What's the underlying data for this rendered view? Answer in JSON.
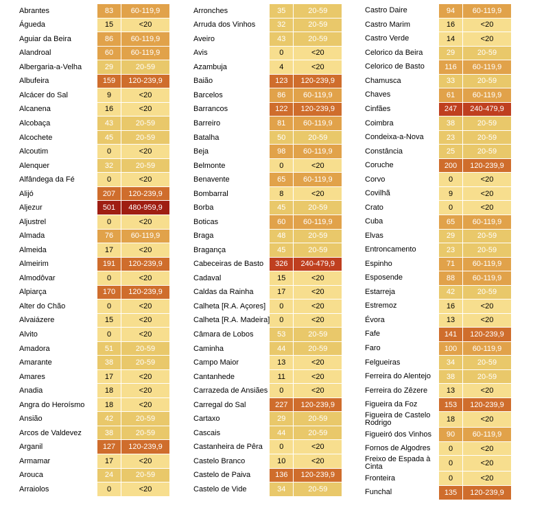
{
  "colors": {
    "lt20": "#f7de8e",
    "20_59": "#e9c86a",
    "60_119": "#e1a24a",
    "120_239": "#cf6d2c",
    "240_479": "#bf3f1f",
    "480_959": "#9f1e12"
  },
  "columns": [
    [
      {
        "name": "Abrantes",
        "value": "83",
        "class": "60-119,9"
      },
      {
        "name": "Águeda",
        "value": "15",
        "class": "<20"
      },
      {
        "name": "Aguiar da Beira",
        "value": "86",
        "class": "60-119,9"
      },
      {
        "name": "Alandroal",
        "value": "60",
        "class": "60-119,9"
      },
      {
        "name": "Albergaria-a-Velha",
        "value": "29",
        "class": "20-59"
      },
      {
        "name": "Albufeira",
        "value": "159",
        "class": "120-239,9"
      },
      {
        "name": "Alcácer do Sal",
        "value": "9",
        "class": "<20"
      },
      {
        "name": "Alcanena",
        "value": "16",
        "class": "<20"
      },
      {
        "name": "Alcobaça",
        "value": "43",
        "class": "20-59"
      },
      {
        "name": "Alcochete",
        "value": "45",
        "class": "20-59"
      },
      {
        "name": "Alcoutim",
        "value": "0",
        "class": "<20"
      },
      {
        "name": "Alenquer",
        "value": "32",
        "class": "20-59"
      },
      {
        "name": "Alfândega da Fé",
        "value": "0",
        "class": "<20"
      },
      {
        "name": "Alijó",
        "value": "207",
        "class": "120-239,9"
      },
      {
        "name": "Aljezur",
        "value": "501",
        "class": "480-959,9"
      },
      {
        "name": "Aljustrel",
        "value": "0",
        "class": "<20"
      },
      {
        "name": "Almada",
        "value": "76",
        "class": "60-119,9"
      },
      {
        "name": "Almeida",
        "value": "17",
        "class": "<20"
      },
      {
        "name": "Almeirim",
        "value": "191",
        "class": "120-239,9"
      },
      {
        "name": "Almodôvar",
        "value": "0",
        "class": "<20"
      },
      {
        "name": "Alpiarça",
        "value": "170",
        "class": "120-239,9"
      },
      {
        "name": "Alter do Chão",
        "value": "0",
        "class": "<20"
      },
      {
        "name": "Alvaiázere",
        "value": "15",
        "class": "<20"
      },
      {
        "name": "Alvito",
        "value": "0",
        "class": "<20"
      },
      {
        "name": "Amadora",
        "value": "51",
        "class": "20-59"
      },
      {
        "name": "Amarante",
        "value": "38",
        "class": "20-59"
      },
      {
        "name": "Amares",
        "value": "17",
        "class": "<20"
      },
      {
        "name": "Anadia",
        "value": "18",
        "class": "<20"
      },
      {
        "name": "Angra do Heroísmo",
        "value": "18",
        "class": "<20"
      },
      {
        "name": "Ansião",
        "value": "42",
        "class": "20-59"
      },
      {
        "name": "Arcos de Valdevez",
        "value": "38",
        "class": "20-59"
      },
      {
        "name": "Arganil",
        "value": "127",
        "class": "120-239,9"
      },
      {
        "name": "Armamar",
        "value": "17",
        "class": "<20"
      },
      {
        "name": "Arouca",
        "value": "24",
        "class": "20-59"
      },
      {
        "name": "Arraiolos",
        "value": "0",
        "class": "<20"
      }
    ],
    [
      {
        "name": "Arronches",
        "value": "35",
        "class": "20-59"
      },
      {
        "name": "Arruda dos Vinhos",
        "value": "32",
        "class": "20-59"
      },
      {
        "name": "Aveiro",
        "value": "43",
        "class": "20-59"
      },
      {
        "name": "Avis",
        "value": "0",
        "class": "<20"
      },
      {
        "name": "Azambuja",
        "value": "4",
        "class": "<20"
      },
      {
        "name": "Baião",
        "value": "123",
        "class": "120-239,9"
      },
      {
        "name": "Barcelos",
        "value": "86",
        "class": "60-119,9"
      },
      {
        "name": "Barrancos",
        "value": "122",
        "class": "120-239,9"
      },
      {
        "name": "Barreiro",
        "value": "81",
        "class": "60-119,9"
      },
      {
        "name": "Batalha",
        "value": "50",
        "class": "20-59"
      },
      {
        "name": "Beja",
        "value": "98",
        "class": "60-119,9"
      },
      {
        "name": "Belmonte",
        "value": "0",
        "class": "<20"
      },
      {
        "name": "Benavente",
        "value": "65",
        "class": "60-119,9"
      },
      {
        "name": "Bombarral",
        "value": "8",
        "class": "<20"
      },
      {
        "name": "Borba",
        "value": "45",
        "class": "20-59"
      },
      {
        "name": "Boticas",
        "value": "60",
        "class": "60-119,9"
      },
      {
        "name": "Braga",
        "value": "48",
        "class": "20-59"
      },
      {
        "name": "Bragança",
        "value": "45",
        "class": "20-59"
      },
      {
        "name": "Cabeceiras de Basto",
        "value": "326",
        "class": "240-479,9"
      },
      {
        "name": "Cadaval",
        "value": "15",
        "class": "<20"
      },
      {
        "name": "Caldas da Rainha",
        "value": "17",
        "class": "<20"
      },
      {
        "name": "Calheta [R.A. Açores]",
        "value": "0",
        "class": "<20"
      },
      {
        "name": "Calheta [R.A. Madeira]",
        "value": "0",
        "class": "<20"
      },
      {
        "name": "Câmara de Lobos",
        "value": "53",
        "class": "20-59"
      },
      {
        "name": "Caminha",
        "value": "44",
        "class": "20-59"
      },
      {
        "name": "Campo Maior",
        "value": "13",
        "class": "<20"
      },
      {
        "name": "Cantanhede",
        "value": "11",
        "class": "<20"
      },
      {
        "name": "Carrazeda de Ansiães",
        "value": "0",
        "class": "<20"
      },
      {
        "name": "Carregal do Sal",
        "value": "227",
        "class": "120-239,9"
      },
      {
        "name": "Cartaxo",
        "value": "29",
        "class": "20-59"
      },
      {
        "name": "Cascais",
        "value": "44",
        "class": "20-59"
      },
      {
        "name": "Castanheira de Pêra",
        "value": "0",
        "class": "<20"
      },
      {
        "name": "Castelo Branco",
        "value": "10",
        "class": "<20"
      },
      {
        "name": "Castelo de Paiva",
        "value": "136",
        "class": "120-239,9"
      },
      {
        "name": "Castelo de Vide",
        "value": "34",
        "class": "20-59"
      }
    ],
    [
      {
        "name": "Castro Daire",
        "value": "94",
        "class": "60-119,9"
      },
      {
        "name": "Castro Marim",
        "value": "16",
        "class": "<20"
      },
      {
        "name": "Castro Verde",
        "value": "14",
        "class": "<20"
      },
      {
        "name": "Celorico da Beira",
        "value": "29",
        "class": "20-59"
      },
      {
        "name": "Celorico de Basto",
        "value": "116",
        "class": "60-119,9"
      },
      {
        "name": "Chamusca",
        "value": "33",
        "class": "20-59"
      },
      {
        "name": "Chaves",
        "value": "61",
        "class": "60-119,9"
      },
      {
        "name": "Cinfães",
        "value": "247",
        "class": "240-479,9"
      },
      {
        "name": "Coimbra",
        "value": "38",
        "class": "20-59"
      },
      {
        "name": "Condeixa-a-Nova",
        "value": "23",
        "class": "20-59"
      },
      {
        "name": "Constância",
        "value": "25",
        "class": "20-59"
      },
      {
        "name": "Coruche",
        "value": "200",
        "class": "120-239,9"
      },
      {
        "name": "Corvo",
        "value": "0",
        "class": "<20"
      },
      {
        "name": "Covilhã",
        "value": "9",
        "class": "<20"
      },
      {
        "name": "Crato",
        "value": "0",
        "class": "<20"
      },
      {
        "name": "Cuba",
        "value": "65",
        "class": "60-119,9"
      },
      {
        "name": "Elvas",
        "value": "29",
        "class": "20-59"
      },
      {
        "name": "Entroncamento",
        "value": "23",
        "class": "20-59"
      },
      {
        "name": "Espinho",
        "value": "71",
        "class": "60-119,9"
      },
      {
        "name": "Esposende",
        "value": "88",
        "class": "60-119,9"
      },
      {
        "name": "Estarreja",
        "value": "42",
        "class": "20-59"
      },
      {
        "name": "Estremoz",
        "value": "16",
        "class": "<20"
      },
      {
        "name": "Évora",
        "value": "13",
        "class": "<20"
      },
      {
        "name": "Fafe",
        "value": "141",
        "class": "120-239,9"
      },
      {
        "name": "Faro",
        "value": "100",
        "class": "60-119,9"
      },
      {
        "name": "Felgueiras",
        "value": "34",
        "class": "20-59"
      },
      {
        "name": "Ferreira do Alentejo",
        "value": "38",
        "class": "20-59"
      },
      {
        "name": "Ferreira do Zêzere",
        "value": "13",
        "class": "<20"
      },
      {
        "name": "Figueira da Foz",
        "value": "153",
        "class": "120-239,9"
      },
      {
        "name": "Figueira de Castelo Rodrigo",
        "value": "18",
        "class": "<20"
      },
      {
        "name": "Figueiró dos Vinhos",
        "value": "90",
        "class": "60-119,9"
      },
      {
        "name": "Fornos de Algodres",
        "value": "0",
        "class": "<20"
      },
      {
        "name": "Freixo de Espada à Cinta",
        "value": "0",
        "class": "<20"
      },
      {
        "name": "Fronteira",
        "value": "0",
        "class": "<20"
      },
      {
        "name": "Funchal",
        "value": "135",
        "class": "120-239,9"
      }
    ]
  ]
}
